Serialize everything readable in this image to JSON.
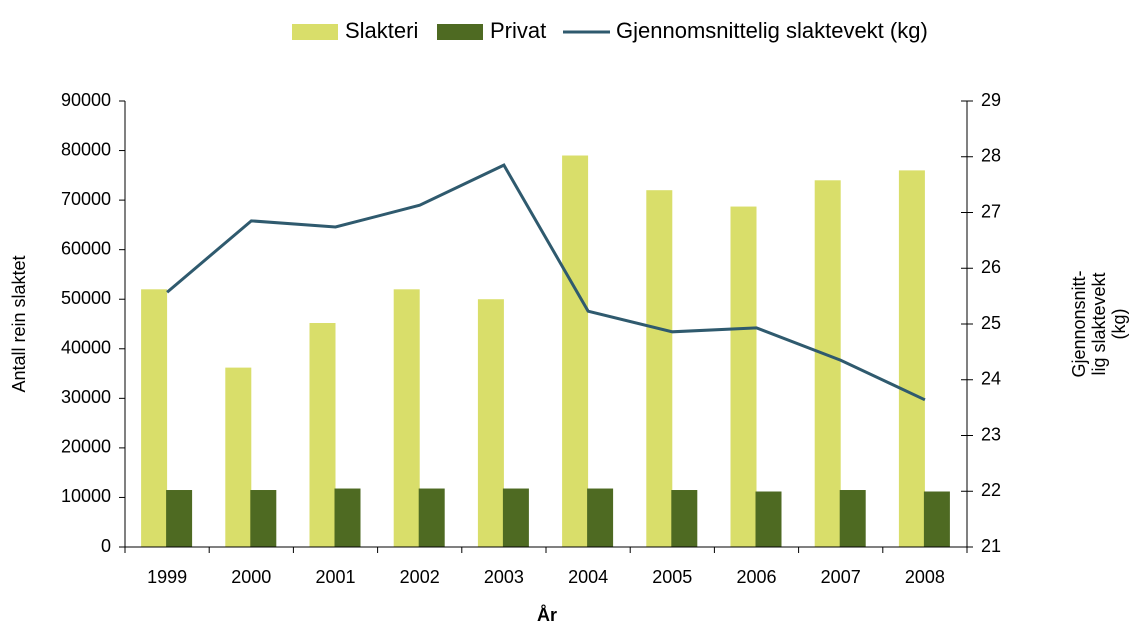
{
  "chart_data": {
    "type": "bar",
    "categories": [
      "1999",
      "2000",
      "2001",
      "2002",
      "2003",
      "2004",
      "2005",
      "2006",
      "2007",
      "2008"
    ],
    "series": [
      {
        "name": "Slakteri",
        "color": "#d9de6a",
        "values": [
          52000,
          36200,
          45200,
          52000,
          50000,
          79000,
          72000,
          68700,
          74000,
          76000
        ]
      },
      {
        "name": "Privat",
        "color": "#4e6a22",
        "values": [
          11500,
          11500,
          11800,
          11800,
          11800,
          11800,
          11500,
          11200,
          11500,
          11200
        ]
      },
      {
        "name": "Gjennomsnittelig slaktevekt (kg)",
        "color": "#2f5a6e",
        "type": "line",
        "axis": "y2",
        "values": [
          25.57,
          26.85,
          26.74,
          27.13,
          27.85,
          25.23,
          24.86,
          24.93,
          24.35,
          23.64
        ]
      }
    ],
    "xlabel": "År",
    "ylabel": "Antall rein slaktet",
    "y2label": [
      "Gjennonsnitt-",
      "lig slaktevekt",
      "(kg)"
    ],
    "ylim": [
      0,
      90000
    ],
    "yticks": [
      0,
      10000,
      20000,
      30000,
      40000,
      50000,
      60000,
      70000,
      80000,
      90000
    ],
    "y2lim": [
      21,
      29
    ],
    "y2ticks": [
      21,
      22,
      23,
      24,
      25,
      26,
      27,
      28,
      29
    ],
    "legend": "top",
    "grid": false
  }
}
